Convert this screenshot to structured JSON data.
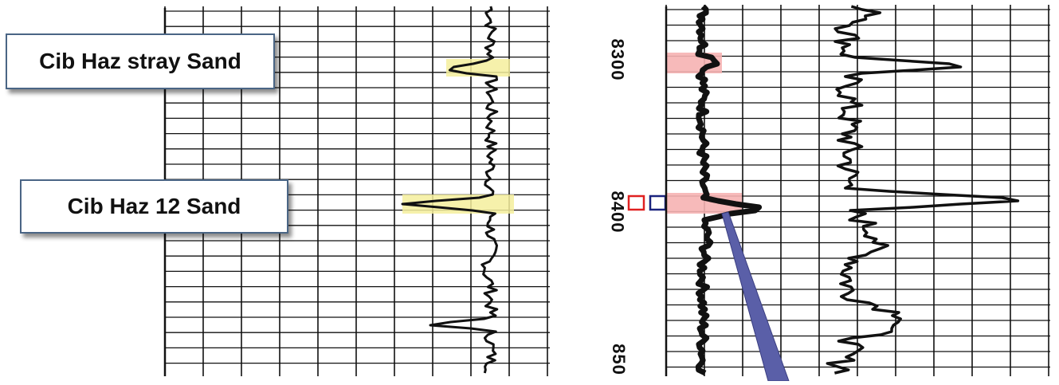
{
  "callouts": {
    "upper": "Cib Haz stray Sand",
    "lower": "Cib Haz 12 Sand"
  },
  "depth_labels": [
    "8300",
    "8400",
    "850"
  ],
  "colors": {
    "sand_highlight_left": "#f4ef9c",
    "sand_highlight_right": "#f6b3b3",
    "marker_red": "#e02020",
    "marker_blue": "#1a237e",
    "pointer": "#5a5fa8",
    "grid": "#111111",
    "callout_border": "#4a6585"
  }
}
